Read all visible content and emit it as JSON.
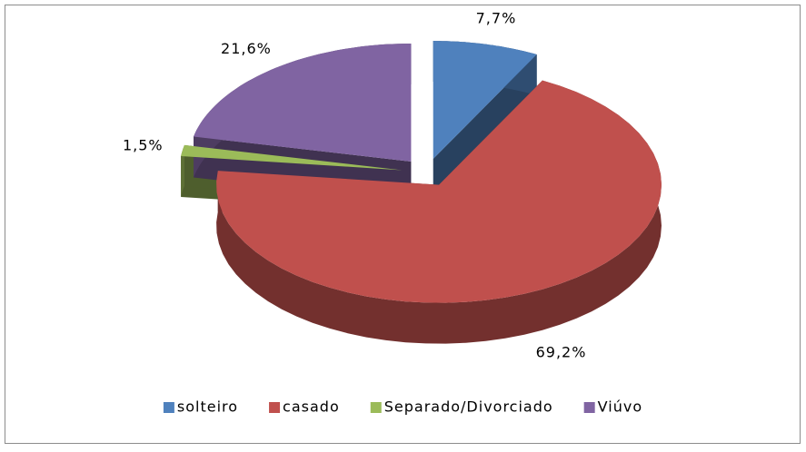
{
  "chart_data": {
    "type": "pie",
    "categories": [
      "solteiro",
      "casado",
      "Separado/Divorciado",
      "Viúvo"
    ],
    "values": [
      7.7,
      69.2,
      1.5,
      21.6
    ],
    "value_labels": [
      "7,7%",
      "69,2%",
      "1,5%",
      "21,6%"
    ],
    "colors": [
      "#4f81bd",
      "#c0504d",
      "#9bbb59",
      "#8064a2"
    ],
    "legend": "bottom"
  }
}
